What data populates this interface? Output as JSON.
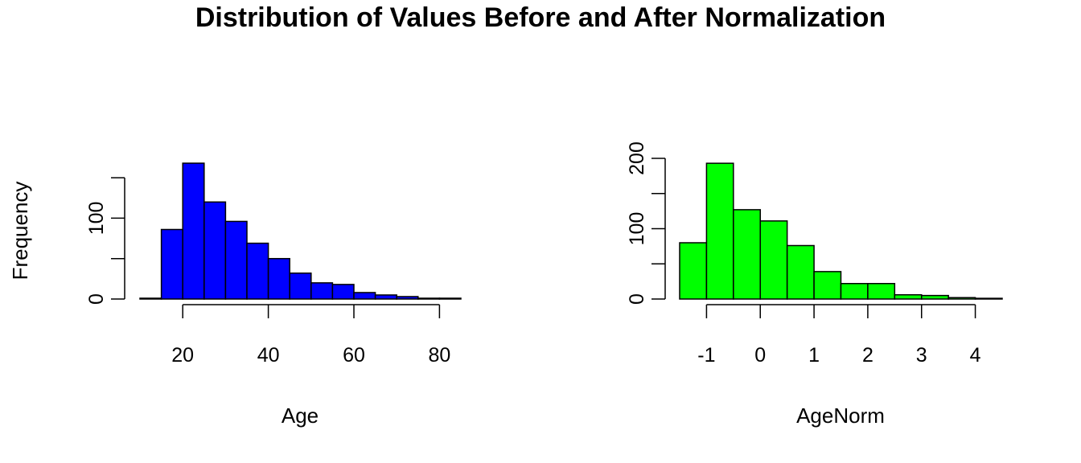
{
  "title": "Distribution of Values Before and After Normalization",
  "chart_data": [
    {
      "type": "bar",
      "xlabel": "Age",
      "ylabel": "Frequency",
      "fill_color": "#0000ff",
      "xlim": [
        10,
        85
      ],
      "ylim": [
        0,
        170
      ],
      "x_ticks": [
        20,
        40,
        60,
        80
      ],
      "y_ticks": [
        0,
        100
      ],
      "y_tick_marks": [
        0,
        50,
        100,
        150
      ],
      "bin_edges": [
        10,
        15,
        20,
        25,
        30,
        35,
        40,
        45,
        50,
        55,
        60,
        65,
        70,
        75,
        80,
        85
      ],
      "values": [
        1,
        86,
        168,
        120,
        96,
        69,
        50,
        32,
        20,
        18,
        8,
        5,
        3,
        1,
        1
      ]
    },
    {
      "type": "bar",
      "xlabel": "AgeNorm",
      "ylabel": "",
      "fill_color": "#00ff00",
      "xlim": [
        -1.5,
        4.5
      ],
      "ylim": [
        0,
        200
      ],
      "x_ticks": [
        -1,
        0,
        1,
        2,
        3,
        4
      ],
      "y_ticks": [
        0,
        100,
        200
      ],
      "y_tick_marks": [
        0,
        50,
        100,
        150,
        200
      ],
      "bin_edges": [
        -1.5,
        -1,
        -0.5,
        0,
        0.5,
        1,
        1.5,
        2,
        2.5,
        3,
        3.5,
        4,
        4.5
      ],
      "values": [
        80,
        193,
        127,
        111,
        76,
        39,
        22,
        22,
        6,
        5,
        2,
        1
      ]
    }
  ]
}
